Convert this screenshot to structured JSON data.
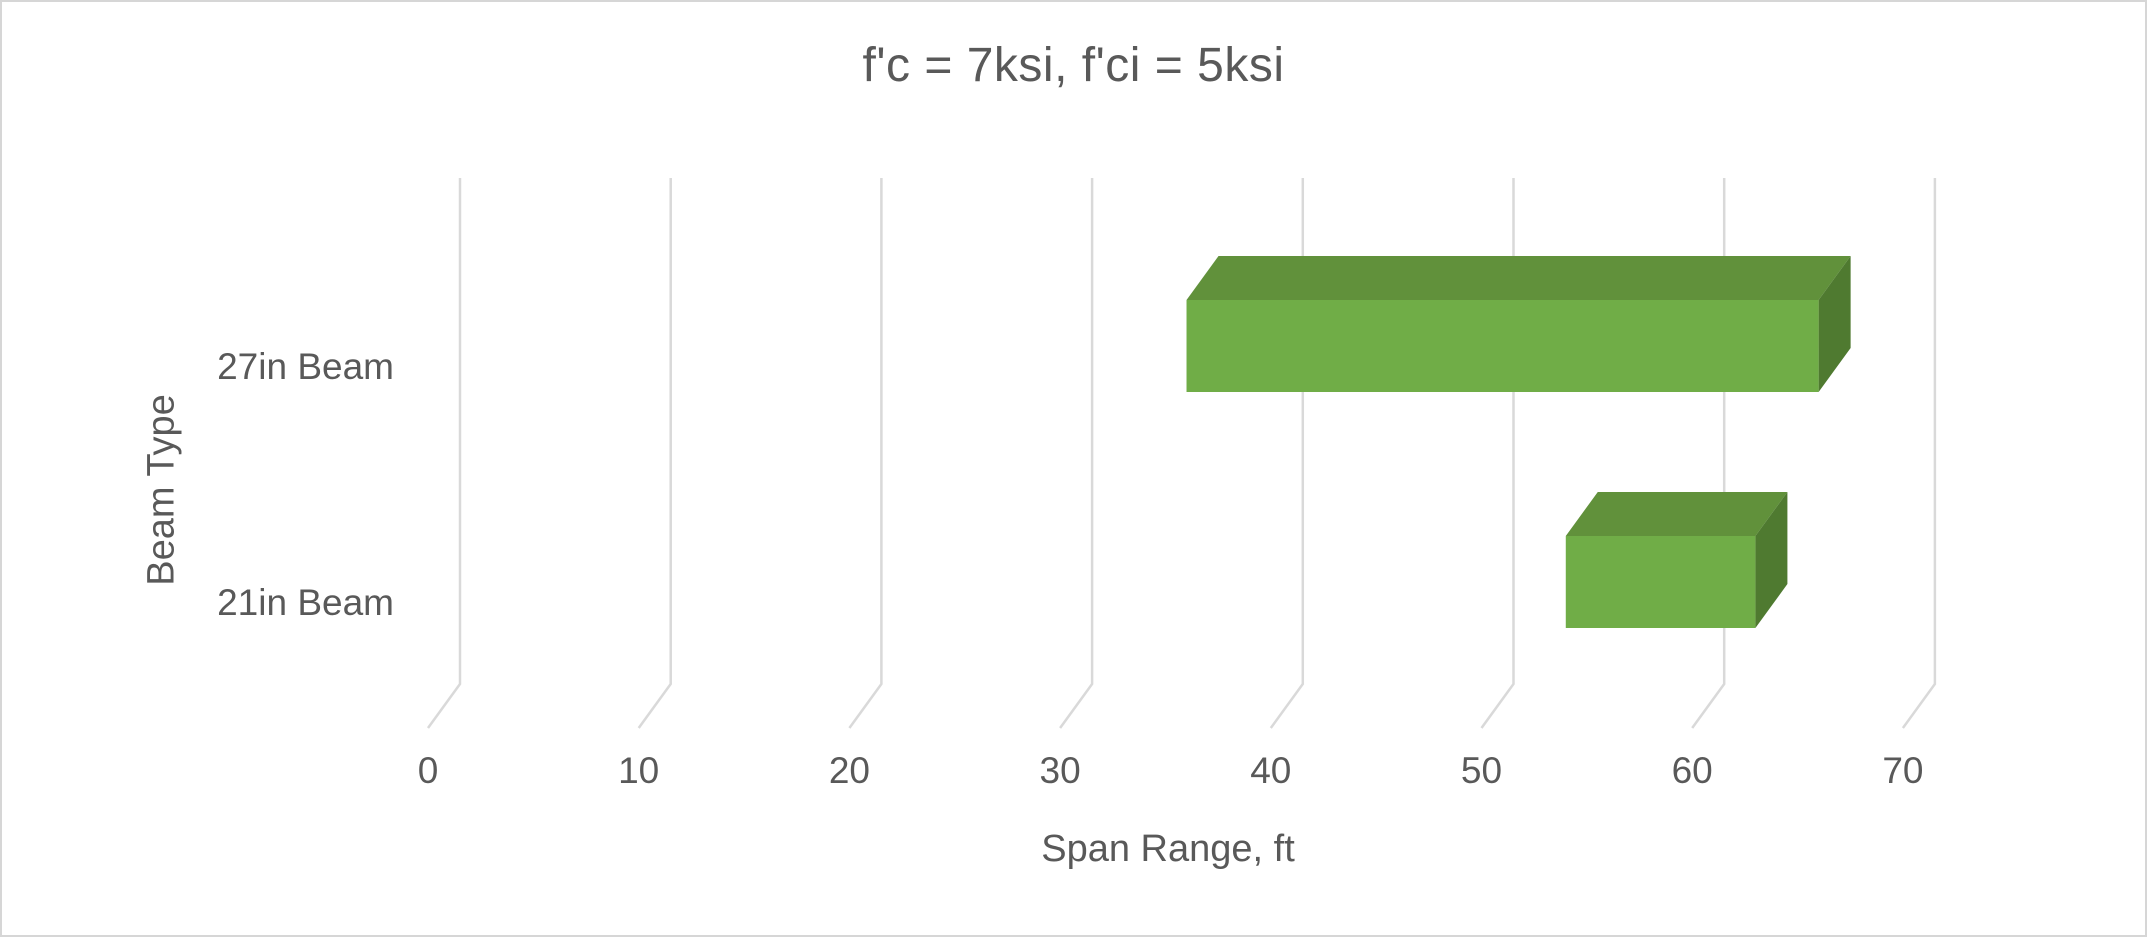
{
  "chart_data": {
    "type": "bar",
    "subtype": "horizontal-range-bar-3d",
    "title": "f'c = 7ksi, f'ci = 5ksi",
    "xlabel": "Span Range, ft",
    "ylabel": "Beam Type",
    "categories": [
      "27in Beam",
      "21in Beam"
    ],
    "series": [
      {
        "name": "Span Range",
        "ranges": [
          [
            36,
            66
          ],
          [
            54,
            63
          ]
        ]
      }
    ],
    "xlim": [
      0,
      75
    ],
    "xticks": [
      0,
      10,
      20,
      30,
      40,
      50,
      60,
      70
    ],
    "grid": true,
    "legend": "none",
    "colors": {
      "bar_front": "#70AD47",
      "bar_top": "#61913B",
      "bar_side": "#4F7A30",
      "gridline": "#D9D9D9",
      "text": "#595959",
      "background": "#FFFFFF"
    }
  }
}
